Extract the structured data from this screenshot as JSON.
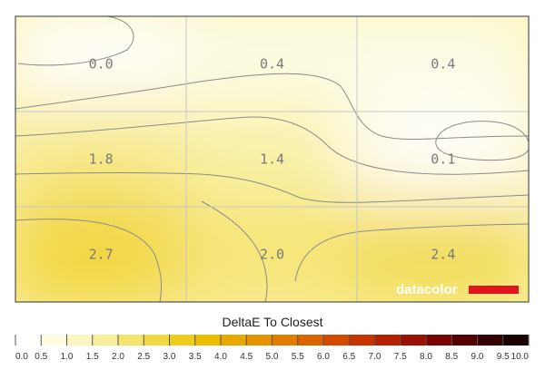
{
  "chart_data": {
    "type": "heatmap",
    "title": "",
    "legend_title": "DeltaE To Closest",
    "rows": 3,
    "cols": 3,
    "values": [
      [
        0.0,
        0.4,
        0.4
      ],
      [
        1.8,
        1.4,
        0.1
      ],
      [
        2.7,
        2.0,
        2.4
      ]
    ],
    "cell_labels": [
      [
        "0.0",
        "0.4",
        "0.4"
      ],
      [
        "1.8",
        "1.4",
        "0.1"
      ],
      [
        "2.7",
        "2.0",
        "2.4"
      ]
    ],
    "scale": {
      "min": 0.0,
      "max": 10.0,
      "ticks": [
        "0.0",
        "0.5",
        "1.0",
        "1.5",
        "2.0",
        "2.5",
        "3.0",
        "3.5",
        "4.0",
        "4.5",
        "5.0",
        "5.5",
        "6.0",
        "6.5",
        "7.0",
        "7.5",
        "8.0",
        "8.5",
        "9.0",
        "9.5",
        "10.0"
      ],
      "colors": [
        "#ffffff",
        "#fdfbe0",
        "#fbf6bf",
        "#f8ee9a",
        "#f5e36e",
        "#f2d843",
        "#efcb1f",
        "#ecbd00",
        "#e8a800",
        "#e59300",
        "#e17c00",
        "#dc6400",
        "#d44b00",
        "#c83400",
        "#b52000",
        "#9b1000",
        "#7a0500",
        "#560000",
        "#360000",
        "#1a0000"
      ]
    },
    "grid": true,
    "brand": "datacolor",
    "brand_color": "#e2141c"
  }
}
